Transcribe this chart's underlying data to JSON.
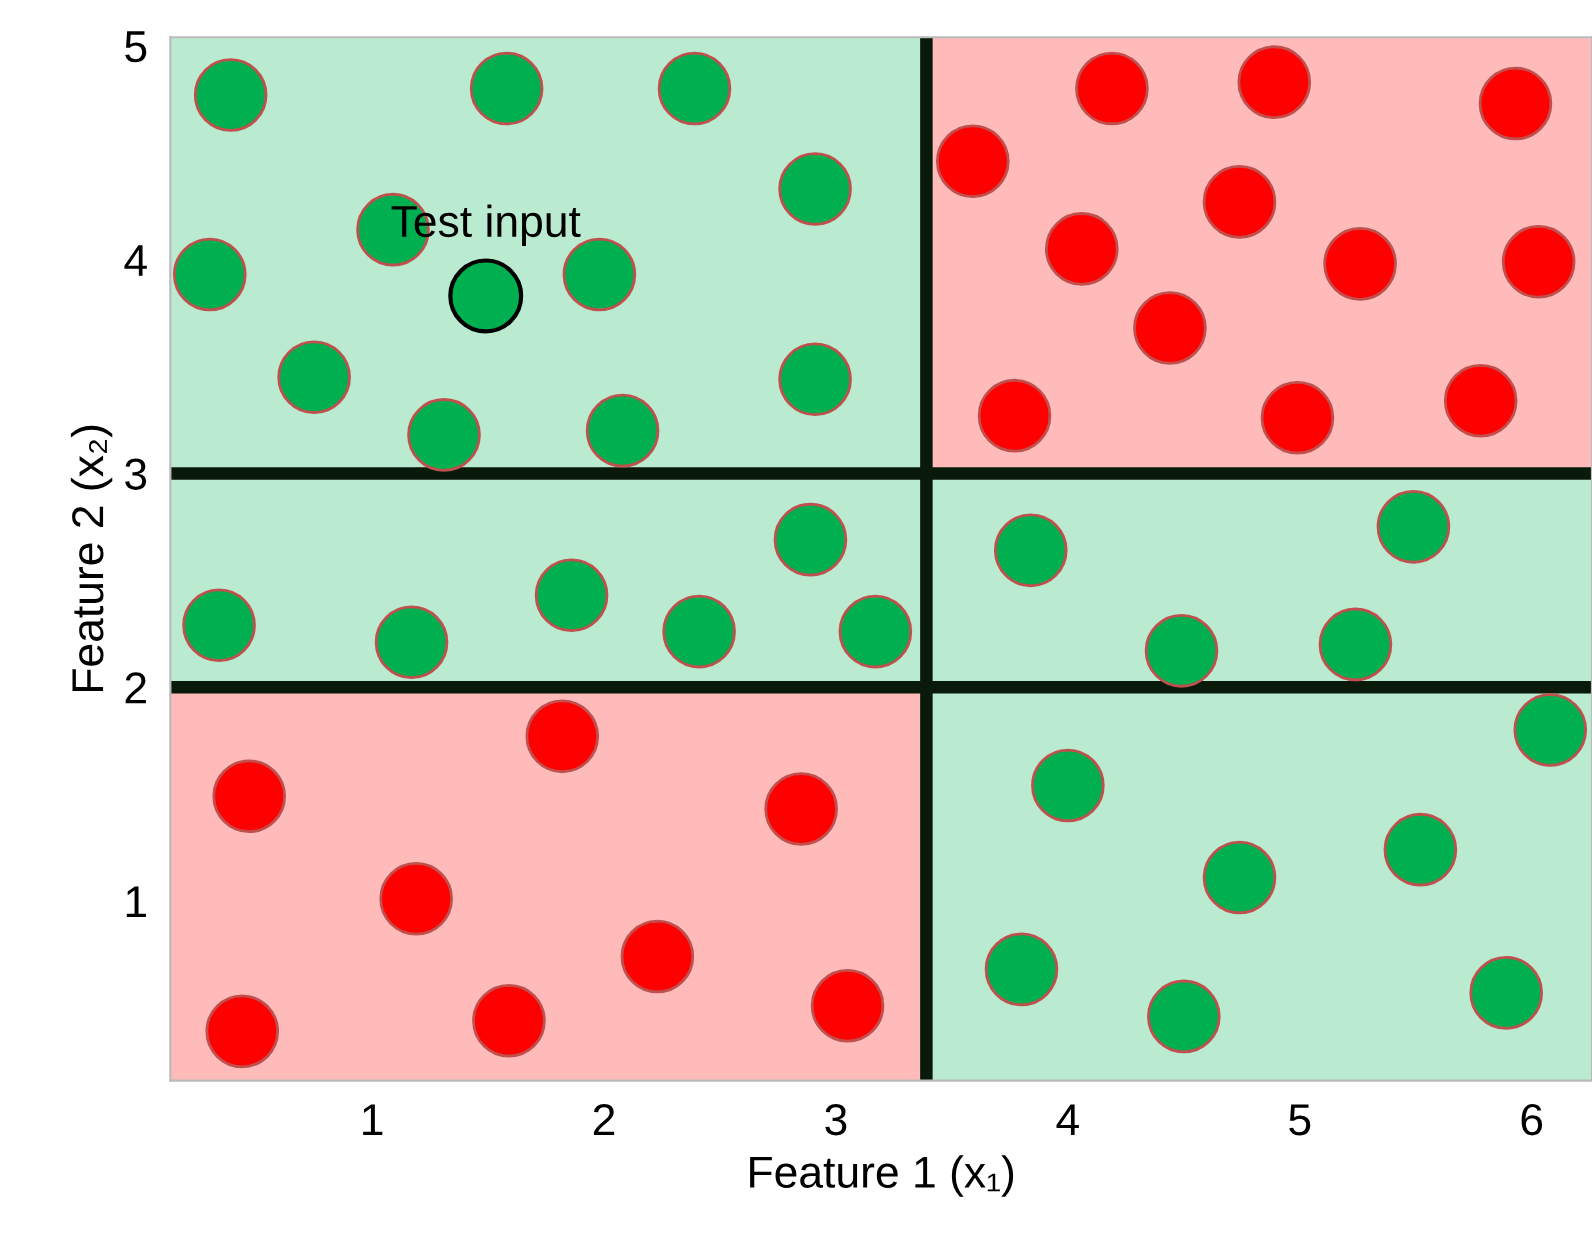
{
  "chart_data": {
    "type": "scatter",
    "xlabel": "Feature 1 (x₁)",
    "ylabel": "Feature 2 (x₂)",
    "xlim": [
      0.13,
      6.26
    ],
    "ylim": [
      0.16,
      5.04
    ],
    "xticks": [
      1,
      2,
      3,
      4,
      5,
      6
    ],
    "yticks": [
      1,
      2,
      3,
      4,
      5
    ],
    "grid": false,
    "marker": "circle",
    "series": [
      {
        "color": "#00b050",
        "x": [
          0.39,
          1.58,
          2.39,
          0.3,
          1.09,
          1.98,
          2.91,
          0.75,
          1.31,
          2.08,
          2.91,
          0.34,
          1.17,
          1.86,
          2.41,
          2.89,
          3.17,
          3.84,
          4.49,
          5.24,
          5.49,
          6.08,
          4.0,
          4.74,
          5.52,
          3.8,
          4.5,
          5.89
        ],
        "values": [
          4.77,
          4.8,
          4.8,
          3.93,
          4.14,
          3.93,
          4.33,
          3.45,
          3.18,
          3.2,
          3.44,
          2.29,
          2.21,
          2.43,
          2.26,
          2.69,
          2.26,
          2.64,
          2.17,
          2.2,
          2.75,
          1.8,
          1.54,
          1.11,
          1.24,
          0.68,
          0.46,
          0.57
        ]
      },
      {
        "color": "#ff0000",
        "x": [
          3.59,
          4.19,
          4.89,
          5.93,
          4.06,
          4.74,
          5.26,
          6.03,
          4.44,
          3.77,
          4.99,
          5.78,
          0.47,
          1.82,
          2.85,
          1.19,
          2.23,
          0.44,
          1.59,
          3.05
        ],
        "values": [
          4.46,
          4.8,
          4.83,
          4.73,
          4.05,
          4.27,
          3.98,
          3.99,
          3.68,
          3.27,
          3.26,
          3.34,
          1.49,
          1.77,
          1.43,
          1.01,
          0.74,
          0.39,
          0.44,
          0.51
        ]
      },
      {
        "color": "#00b050",
        "x": [
          1.49
        ],
        "values": [
          3.83
        ]
      }
    ],
    "ref_lines": [
      {
        "axis": "x",
        "value": 3.39,
        "color": "#0a1a0a"
      },
      {
        "axis": "y",
        "value": 3,
        "color": "#0a1a0a"
      },
      {
        "axis": "y",
        "value": 2,
        "color": "#0a1a0a"
      }
    ],
    "annotations": [
      {
        "text": "Test input",
        "x": 1.49,
        "y": 3.83
      }
    ]
  }
}
